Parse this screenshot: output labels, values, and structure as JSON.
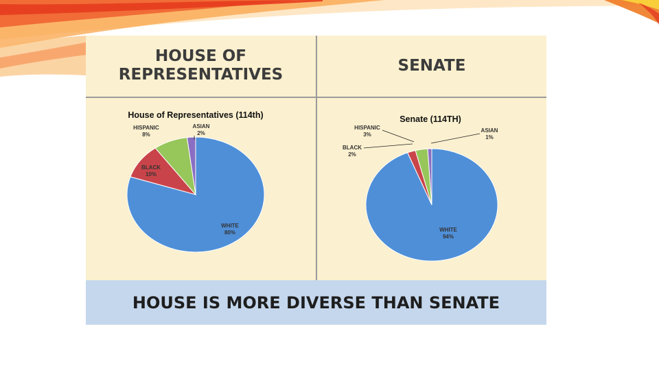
{
  "headers": {
    "house": "HOUSE OF REPRESENTATIVES",
    "senate": "SENATE"
  },
  "footer": "HOUSE IS MORE DIVERSE THAN SENATE",
  "colors": {
    "white": "#4f8fd8",
    "black": "#c9444a",
    "hispanic": "#97c65a",
    "asian": "#8a6ec2",
    "panel": "#fbf0cf",
    "footer_bg": "#c5d7ec"
  },
  "chart_data": [
    {
      "type": "pie",
      "title": "House of Representatives (114th)",
      "slices": [
        {
          "label": "WHITE",
          "value": 80,
          "value_label": "80%"
        },
        {
          "label": "BLACK",
          "value": 10,
          "value_label": "10%"
        },
        {
          "label": "HISPANIC",
          "value": 8,
          "value_label": "8%"
        },
        {
          "label": "ASIAN",
          "value": 2,
          "value_label": "2%"
        }
      ]
    },
    {
      "type": "pie",
      "title": "Senate (114TH)",
      "slices": [
        {
          "label": "WHITE",
          "value": 94,
          "value_label": "94%"
        },
        {
          "label": "BLACK",
          "value": 2,
          "value_label": "2%"
        },
        {
          "label": "HISPANIC",
          "value": 3,
          "value_label": "3%"
        },
        {
          "label": "ASIAN",
          "value": 1,
          "value_label": "1%"
        }
      ]
    }
  ]
}
